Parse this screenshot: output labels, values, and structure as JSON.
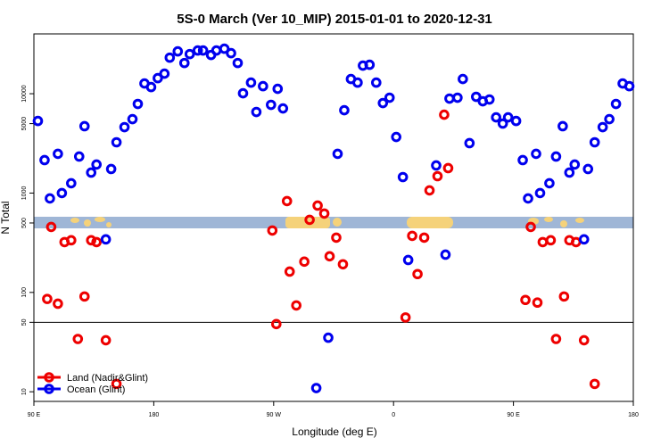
{
  "chart_data": {
    "type": "scatter",
    "title": "5S-0 March (Ver 10_MIP)   2015-01-01 to 2020-12-31",
    "x_label": "Longitude (deg E)",
    "y_label": "N Total",
    "log_y": true,
    "xlim": [
      90,
      540
    ],
    "ylim": [
      8,
      40000
    ],
    "xticks": [
      {
        "value": 90,
        "label": "90 E"
      },
      {
        "value": 180,
        "label": "180"
      },
      {
        "value": 270,
        "label": "90 W"
      },
      {
        "value": 360,
        "label": "0"
      },
      {
        "value": 450,
        "label": "90 E"
      },
      {
        "value": 540,
        "label": "180"
      }
    ],
    "yticks": [
      10,
      50,
      100,
      500,
      1000,
      5000,
      10000
    ],
    "reference_line": 50,
    "legend": "bottom-left",
    "series": [
      {
        "name": "Land (Nadir&Glint)",
        "color": "#ee0000",
        "x": [
          100,
          103,
          108,
          113,
          118,
          123,
          128,
          133,
          137,
          144,
          152,
          269,
          272,
          280,
          282,
          287,
          293,
          297,
          303,
          308,
          312,
          317,
          322,
          369,
          374,
          378,
          383,
          387,
          393,
          398,
          401,
          459,
          463,
          468,
          472,
          478,
          482,
          488,
          492,
          497,
          503,
          511
        ],
        "values": [
          86,
          456,
          77,
          321,
          335,
          34,
          91,
          335,
          321,
          33,
          12,
          420,
          48,
          830,
          162,
          74,
          204,
          538,
          748,
          622,
          231,
          356,
          192,
          56,
          371,
          153,
          356,
          1064,
          1479,
          6150,
          1783,
          84,
          456,
          79,
          321,
          335,
          34,
          91,
          335,
          321,
          33,
          12
        ]
      },
      {
        "name": "Ocean (Glint)",
        "color": "#0000ee",
        "x": [
          93,
          98,
          102,
          108,
          111,
          118,
          124,
          128,
          133,
          137,
          144,
          148,
          152,
          158,
          164,
          168,
          173,
          178,
          183,
          188,
          192,
          198,
          203,
          207,
          213,
          217,
          223,
          227,
          233,
          238,
          243,
          247,
          253,
          257,
          262,
          268,
          273,
          277,
          302,
          311,
          318,
          323,
          328,
          333,
          337,
          342,
          347,
          352,
          357,
          362,
          367,
          371,
          392,
          399,
          402,
          408,
          412,
          417,
          422,
          427,
          432,
          437,
          442,
          446,
          452,
          457,
          461,
          467,
          470,
          477,
          482,
          487,
          492,
          496,
          503,
          506,
          511,
          517,
          522,
          527,
          532,
          537
        ],
        "values": [
          5320,
          2147,
          883,
          2483,
          1000,
          1255,
          2333,
          4710,
          1608,
          1937,
          342,
          1746,
          3245,
          4610,
          5550,
          7890,
          12680,
          11670,
          14350,
          15920,
          23070,
          26670,
          20380,
          25060,
          27230,
          27230,
          24550,
          27230,
          28380,
          25590,
          20380,
          10100,
          12940,
          6550,
          11910,
          7730,
          11200,
          7110,
          10.9,
          35,
          2483,
          6820,
          14060,
          12940,
          19180,
          19560,
          12940,
          8050,
          9120,
          3670,
          1449,
          212,
          1897,
          240,
          8930,
          9120,
          14060,
          3180,
          9310,
          8390,
          8750,
          5780,
          5010,
          5780,
          5320,
          2147,
          883,
          2483,
          1000,
          1255,
          2333,
          4710,
          1608,
          1937,
          342,
          1746,
          3245,
          4610,
          5550,
          7890,
          12680,
          11910
        ]
      }
    ]
  }
}
